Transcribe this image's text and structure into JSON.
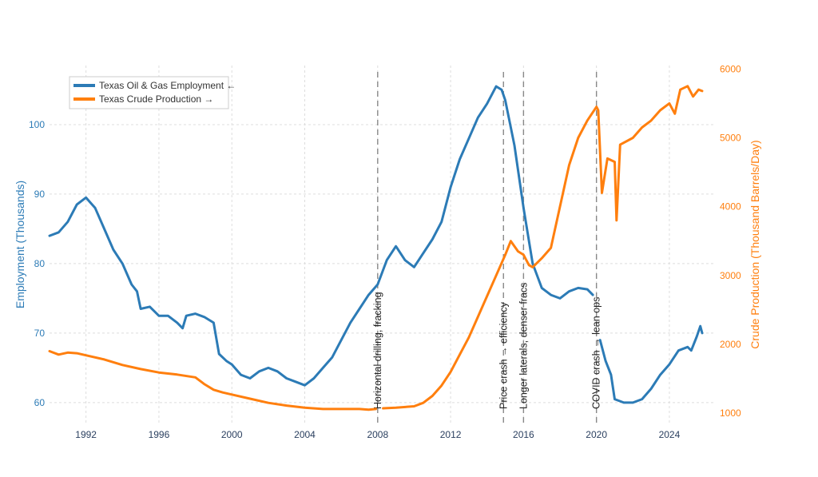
{
  "chart_data": {
    "type": "line",
    "title": "",
    "colors": {
      "employment": "#2c7bb6",
      "production": "#ff7f0e",
      "grid": "#dddddd",
      "annotation": "#888888"
    },
    "x_axis": {
      "range": [
        1990.0,
        2026.5
      ],
      "ticks": [
        1992,
        1996,
        2000,
        2004,
        2008,
        2012,
        2016,
        2020,
        2024
      ],
      "label": ""
    },
    "y_left": {
      "label": "Employment (Thousands)",
      "range": [
        57.0,
        108.5
      ],
      "ticks": [
        60,
        70,
        80,
        90,
        100
      ]
    },
    "y_right": {
      "label": "Crude Production (Thousand Barrels/Day)",
      "range": [
        850,
        6050
      ],
      "ticks": [
        1000,
        2000,
        3000,
        4000,
        5000,
        6000
      ]
    },
    "legend": {
      "placement": "top-left",
      "items": [
        "Texas Oil & Gas Employment ←",
        "Texas Crude Production →"
      ]
    },
    "annotations": [
      {
        "x": 2008.0,
        "text": "Horizontal drilling, fracking"
      },
      {
        "x": 2014.9,
        "text": "Price crash → efficiency"
      },
      {
        "x": 2016.0,
        "text": "Longer laterals, denser fracs"
      },
      {
        "x": 2020.0,
        "text": "COVID crash → lean ops"
      }
    ],
    "series": [
      {
        "name": "Texas Oil & Gas Employment ←",
        "axis": "left",
        "segments": [
          [
            [
              1990.0,
              84.0
            ],
            [
              1990.5,
              84.5
            ],
            [
              1991.0,
              86.0
            ],
            [
              1991.5,
              88.5
            ],
            [
              1992.0,
              89.5
            ],
            [
              1992.5,
              88.0
            ],
            [
              1993.0,
              85.0
            ],
            [
              1993.5,
              82.0
            ],
            [
              1994.0,
              80.0
            ],
            [
              1994.5,
              77.0
            ],
            [
              1994.8,
              76.0
            ],
            [
              1995.0,
              73.5
            ],
            [
              1995.5,
              73.8
            ],
            [
              1996.0,
              72.5
            ],
            [
              1996.5,
              72.5
            ],
            [
              1997.0,
              71.5
            ],
            [
              1997.3,
              70.7
            ],
            [
              1997.5,
              72.5
            ],
            [
              1998.0,
              72.8
            ],
            [
              1998.5,
              72.3
            ],
            [
              1999.0,
              71.5
            ],
            [
              1999.3,
              67.0
            ],
            [
              1999.7,
              66.0
            ],
            [
              2000.0,
              65.5
            ],
            [
              2000.5,
              64.0
            ],
            [
              2001.0,
              63.5
            ],
            [
              2001.5,
              64.5
            ],
            [
              2002.0,
              65.0
            ],
            [
              2002.5,
              64.5
            ],
            [
              2003.0,
              63.5
            ],
            [
              2003.5,
              63.0
            ],
            [
              2004.0,
              62.5
            ],
            [
              2004.5,
              63.5
            ],
            [
              2005.0,
              65.0
            ],
            [
              2005.5,
              66.5
            ],
            [
              2006.0,
              69.0
            ],
            [
              2006.5,
              71.5
            ],
            [
              2007.0,
              73.5
            ],
            [
              2007.5,
              75.5
            ],
            [
              2008.0,
              77.0
            ],
            [
              2008.5,
              80.5
            ],
            [
              2009.0,
              82.5
            ],
            [
              2009.5,
              80.5
            ],
            [
              2010.0,
              79.5
            ],
            [
              2010.5,
              81.5
            ],
            [
              2011.0,
              83.5
            ],
            [
              2011.5,
              86.0
            ],
            [
              2012.0,
              91.0
            ],
            [
              2012.5,
              95.0
            ],
            [
              2013.0,
              98.0
            ],
            [
              2013.5,
              101.0
            ],
            [
              2014.0,
              103.0
            ],
            [
              2014.5,
              105.5
            ],
            [
              2014.8,
              105.0
            ],
            [
              2015.0,
              103.5
            ],
            [
              2015.5,
              97.0
            ],
            [
              2016.0,
              88.0
            ],
            [
              2016.5,
              80.0
            ],
            [
              2017.0,
              76.5
            ],
            [
              2017.5,
              75.5
            ],
            [
              2018.0,
              75.0
            ],
            [
              2018.5,
              76.0
            ],
            [
              2019.0,
              76.5
            ],
            [
              2019.5,
              76.3
            ],
            [
              2019.8,
              75.5
            ]
          ],
          [
            [
              2020.2,
              69.0
            ],
            [
              2020.5,
              66.0
            ],
            [
              2020.8,
              64.0
            ],
            [
              2021.0,
              60.5
            ],
            [
              2021.5,
              60.0
            ],
            [
              2022.0,
              60.0
            ],
            [
              2022.5,
              60.5
            ],
            [
              2023.0,
              62.0
            ],
            [
              2023.5,
              64.0
            ],
            [
              2024.0,
              65.5
            ],
            [
              2024.5,
              67.5
            ],
            [
              2025.0,
              68.0
            ],
            [
              2025.2,
              67.5
            ],
            [
              2025.5,
              69.5
            ],
            [
              2025.7,
              71.0
            ],
            [
              2025.8,
              70.0
            ]
          ]
        ]
      },
      {
        "name": "Texas Crude Production →",
        "axis": "right",
        "segments": [
          [
            [
              1990.0,
              1900
            ],
            [
              1990.5,
              1850
            ],
            [
              1991.0,
              1880
            ],
            [
              1991.5,
              1870
            ],
            [
              1992.0,
              1840
            ],
            [
              1993.0,
              1780
            ],
            [
              1994.0,
              1700
            ],
            [
              1995.0,
              1640
            ],
            [
              1996.0,
              1590
            ],
            [
              1997.0,
              1560
            ],
            [
              1998.0,
              1520
            ],
            [
              1998.5,
              1420
            ],
            [
              1999.0,
              1340
            ],
            [
              1999.5,
              1300
            ],
            [
              2000.0,
              1270
            ],
            [
              2001.0,
              1210
            ],
            [
              2002.0,
              1150
            ],
            [
              2003.0,
              1110
            ],
            [
              2004.0,
              1080
            ],
            [
              2005.0,
              1060
            ],
            [
              2006.0,
              1060
            ],
            [
              2007.0,
              1060
            ],
            [
              2007.5,
              1050
            ],
            [
              2007.9,
              1060
            ]
          ],
          [
            [
              2008.3,
              1070
            ],
            [
              2009.0,
              1080
            ],
            [
              2010.0,
              1100
            ],
            [
              2010.5,
              1150
            ],
            [
              2011.0,
              1250
            ],
            [
              2011.5,
              1400
            ],
            [
              2012.0,
              1600
            ],
            [
              2012.5,
              1850
            ],
            [
              2013.0,
              2100
            ],
            [
              2013.5,
              2400
            ],
            [
              2014.0,
              2700
            ],
            [
              2014.5,
              3000
            ],
            [
              2015.0,
              3300
            ],
            [
              2015.3,
              3500
            ],
            [
              2015.7,
              3350
            ],
            [
              2016.0,
              3300
            ],
            [
              2016.3,
              3150
            ],
            [
              2016.5,
              3120
            ],
            [
              2017.0,
              3250
            ],
            [
              2017.5,
              3400
            ],
            [
              2018.0,
              4000
            ],
            [
              2018.5,
              4600
            ],
            [
              2019.0,
              5000
            ],
            [
              2019.5,
              5250
            ],
            [
              2020.0,
              5450
            ],
            [
              2020.1,
              5400
            ],
            [
              2020.3,
              4200
            ],
            [
              2020.6,
              4700
            ],
            [
              2021.0,
              4650
            ],
            [
              2021.1,
              3800
            ],
            [
              2021.3,
              4900
            ],
            [
              2022.0,
              5000
            ],
            [
              2022.5,
              5150
            ],
            [
              2023.0,
              5250
            ],
            [
              2023.5,
              5400
            ],
            [
              2024.0,
              5500
            ],
            [
              2024.3,
              5350
            ],
            [
              2024.6,
              5700
            ],
            [
              2025.0,
              5750
            ],
            [
              2025.3,
              5600
            ],
            [
              2025.6,
              5700
            ],
            [
              2025.8,
              5680
            ]
          ]
        ]
      }
    ]
  }
}
